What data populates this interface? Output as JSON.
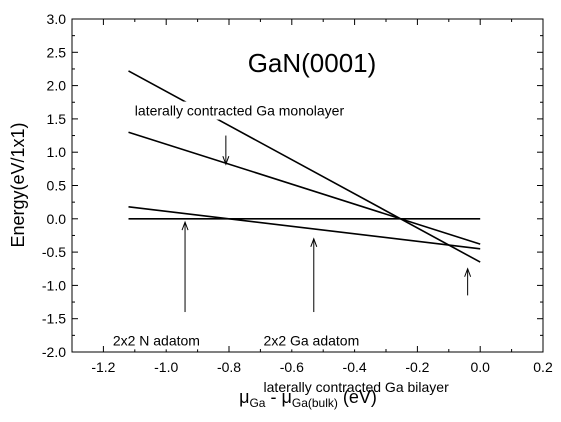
{
  "chart_data": {
    "type": "line",
    "title": "GaN(0001)",
    "ylabel": "Energy(eV/1x1)",
    "xlabel": {
      "prefix_symbol": "μ",
      "prefix_sub": "Ga",
      "separator": " - ",
      "second_symbol": "μ",
      "second_sub": "Ga(bulk)",
      "unit": " (eV)"
    },
    "xlim": [
      -1.3,
      0.2
    ],
    "ylim": [
      -2.0,
      3.0
    ],
    "xticks": [
      "-1.2",
      "-1.0",
      "-0.8",
      "-0.6",
      "-0.4",
      "-0.2",
      "0.0",
      "0.2"
    ],
    "xtick_values": [
      -1.2,
      -1.0,
      -0.8,
      -0.6,
      -0.4,
      -0.2,
      0.0,
      0.2
    ],
    "yticks": [
      "-2.0",
      "-1.5",
      "-1.0",
      "-0.5",
      "0.0",
      "0.5",
      "1.0",
      "1.5",
      "2.0",
      "2.5",
      "3.0"
    ],
    "ytick_values": [
      -2.0,
      -1.5,
      -1.0,
      -0.5,
      0.0,
      0.5,
      1.0,
      1.5,
      2.0,
      2.5,
      3.0
    ],
    "grid": false,
    "series": [
      {
        "key": "s_n",
        "x": [
          -1.12,
          0.0
        ],
        "y": [
          0.0,
          0.0
        ]
      },
      {
        "key": "s_ga",
        "x": [
          -1.12,
          0.0
        ],
        "y": [
          0.18,
          -0.45
        ]
      },
      {
        "key": "s_mono",
        "x": [
          -1.12,
          0.0
        ],
        "y": [
          1.3,
          -0.38
        ]
      },
      {
        "key": "s_bi",
        "x": [
          -1.12,
          0.0
        ],
        "y": [
          2.22,
          -0.65
        ]
      }
    ],
    "annotations": [
      {
        "text": "laterally contracted Ga monolayer",
        "text_x": -1.1,
        "text_y": 1.55,
        "arrow_from": [
          -0.81,
          1.25
        ],
        "arrow_to": [
          -0.81,
          0.82
        ]
      },
      {
        "text": "2x2 N adatom",
        "text_x": -1.17,
        "text_y": -1.9,
        "arrow_from": [
          -0.94,
          -1.4
        ],
        "arrow_to": [
          -0.94,
          -0.05
        ]
      },
      {
        "text": "2x2 Ga adatom",
        "text_x": -0.69,
        "text_y": -1.9,
        "arrow_from": [
          -0.53,
          -1.4
        ],
        "arrow_to": [
          -0.53,
          -0.3
        ]
      },
      {
        "text": "laterally contracted Ga bilayer",
        "text_x": -0.69,
        "text_y": -2.6,
        "arrow_from": [
          -0.04,
          -1.15
        ],
        "arrow_to": [
          -0.04,
          -0.75
        ]
      }
    ]
  }
}
